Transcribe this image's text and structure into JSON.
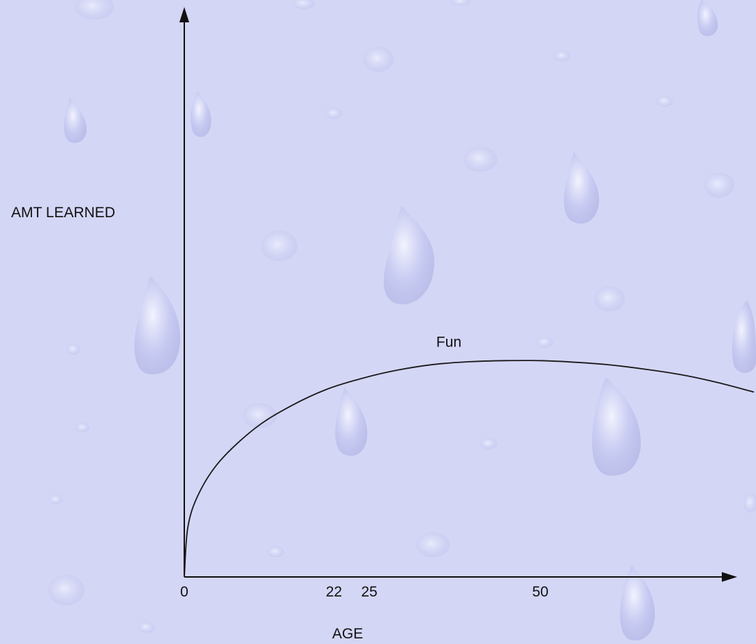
{
  "chart_data": {
    "type": "line",
    "title": "",
    "xlabel": "AGE",
    "ylabel": "AMT LEARNED",
    "x_ticks": [
      {
        "value": 0,
        "label": "0"
      },
      {
        "value": 22,
        "label": "22"
      },
      {
        "value": 25,
        "label": "25"
      },
      {
        "value": 50,
        "label": "50"
      }
    ],
    "xlim": [
      0,
      80
    ],
    "ylim": [
      0,
      100
    ],
    "series": [
      {
        "name": "Fun",
        "color": "#1a1a1a",
        "x": [
          0,
          0.5,
          2,
          5,
          10,
          15,
          20,
          25,
          30,
          35,
          40,
          45,
          50,
          55,
          60,
          65,
          70,
          75,
          80
        ],
        "y": [
          0,
          9,
          15,
          21,
          27,
          31,
          34,
          36,
          37.5,
          38.5,
          39,
          39.2,
          39.2,
          38.9,
          38.4,
          37.6,
          36.6,
          35.2,
          33.5
        ]
      }
    ],
    "grid": false,
    "background": "#d4d6f6",
    "axis_color": "#111111"
  }
}
